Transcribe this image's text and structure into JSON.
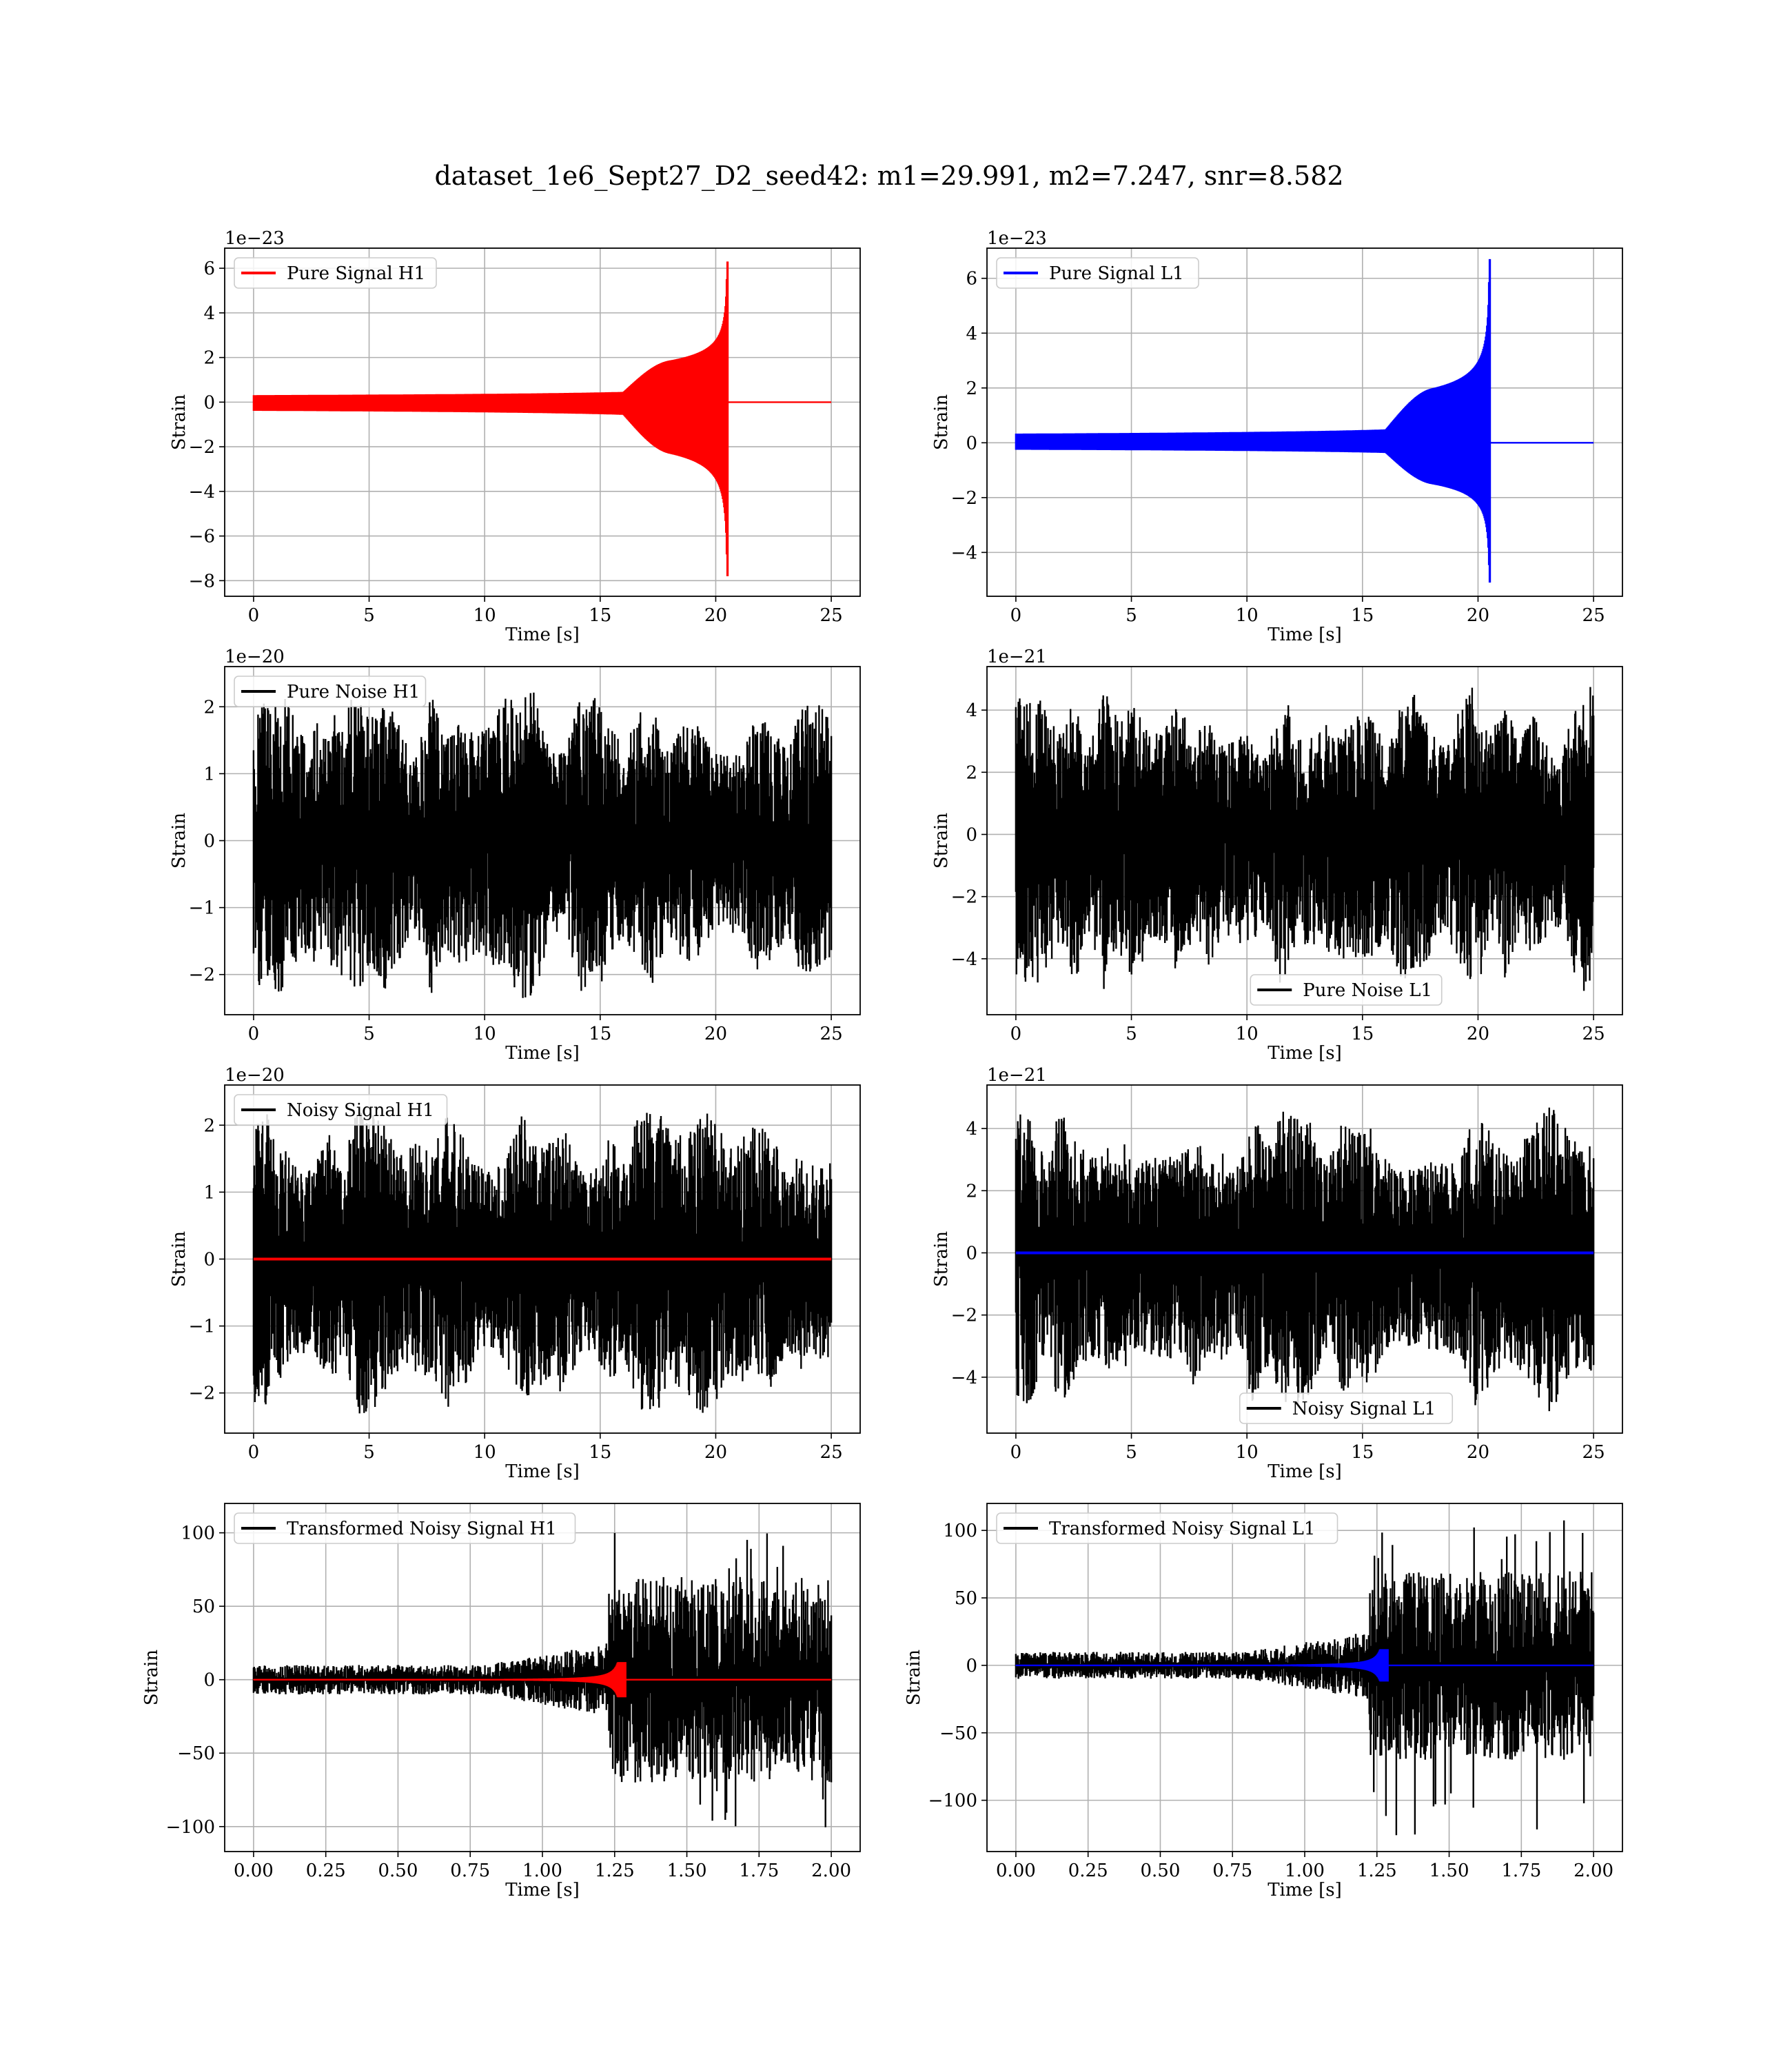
{
  "figure_title": "dataset_1e6_Sept27_D2_seed42: m1=29.991, m2=7.247, snr=8.582",
  "chart_data": [
    {
      "id": "p1",
      "type": "line",
      "ylabel": "Strain",
      "xlabel": "Time [s]",
      "offset_text": "1e−23",
      "xlim": [
        -1.25,
        26.25
      ],
      "ylim": [
        -8.7,
        6.9
      ],
      "xticks": [
        0,
        5,
        10,
        15,
        20,
        25
      ],
      "yticks": [
        -8,
        -6,
        -4,
        -2,
        0,
        2,
        4,
        6
      ],
      "xtick_labels": [
        "0",
        "5",
        "10",
        "15",
        "20",
        "25"
      ],
      "ytick_labels": [
        "−8",
        "−6",
        "−4",
        "−2",
        "0",
        "2",
        "4",
        "6"
      ],
      "legend": {
        "loc": "upper-left",
        "entries": [
          {
            "label": "Pure Signal H1",
            "color": "#ff0000"
          }
        ]
      },
      "series": [
        {
          "name": "Pure Signal H1",
          "color": "#ff0000",
          "kind": "chirp",
          "x_range": [
            0,
            25
          ],
          "merger_time": 20.5,
          "envelope_peak": [
            6.3,
            -7.8
          ]
        }
      ],
      "grid": true
    },
    {
      "id": "p2",
      "type": "line",
      "ylabel": "Strain",
      "xlabel": "Time [s]",
      "offset_text": "1e−23",
      "xlim": [
        -1.25,
        26.25
      ],
      "ylim": [
        -5.6,
        7.1
      ],
      "xticks": [
        0,
        5,
        10,
        15,
        20,
        25
      ],
      "yticks": [
        -4,
        -2,
        0,
        2,
        4,
        6
      ],
      "xtick_labels": [
        "0",
        "5",
        "10",
        "15",
        "20",
        "25"
      ],
      "ytick_labels": [
        "−4",
        "−2",
        "0",
        "2",
        "4",
        "6"
      ],
      "legend": {
        "loc": "upper-left",
        "entries": [
          {
            "label": "Pure Signal L1",
            "color": "#0000ff"
          }
        ]
      },
      "series": [
        {
          "name": "Pure Signal L1",
          "color": "#0000ff",
          "kind": "chirp",
          "x_range": [
            0,
            25
          ],
          "merger_time": 20.5,
          "envelope_peak": [
            6.7,
            -5.1
          ]
        }
      ],
      "grid": true
    },
    {
      "id": "p3",
      "type": "line",
      "ylabel": "Strain",
      "xlabel": "Time [s]",
      "offset_text": "1e−20",
      "xlim": [
        -1.25,
        26.25
      ],
      "ylim": [
        -2.6,
        2.6
      ],
      "xticks": [
        0,
        5,
        10,
        15,
        20,
        25
      ],
      "yticks": [
        -2,
        -1,
        0,
        1,
        2
      ],
      "xtick_labels": [
        "0",
        "5",
        "10",
        "15",
        "20",
        "25"
      ],
      "ytick_labels": [
        "−2",
        "−1",
        "0",
        "1",
        "2"
      ],
      "legend": {
        "loc": "upper-left",
        "entries": [
          {
            "label": "Pure Noise H1",
            "color": "#000000"
          }
        ]
      },
      "series": [
        {
          "name": "Pure Noise H1",
          "color": "#000000",
          "kind": "noise",
          "x_range": [
            0,
            25
          ],
          "envelope_max": 2.3,
          "envelope_min": -2.4
        }
      ],
      "grid": true
    },
    {
      "id": "p4",
      "type": "line",
      "ylabel": "Strain",
      "xlabel": "Time [s]",
      "offset_text": "1e−21",
      "xlim": [
        -1.25,
        26.25
      ],
      "ylim": [
        -5.8,
        5.4
      ],
      "xticks": [
        0,
        5,
        10,
        15,
        20,
        25
      ],
      "yticks": [
        -4,
        -2,
        0,
        2,
        4
      ],
      "xtick_labels": [
        "0",
        "5",
        "10",
        "15",
        "20",
        "25"
      ],
      "ytick_labels": [
        "−4",
        "−2",
        "0",
        "2",
        "4"
      ],
      "legend": {
        "loc": "lower-center",
        "entries": [
          {
            "label": "Pure Noise L1",
            "color": "#000000"
          }
        ]
      },
      "series": [
        {
          "name": "Pure Noise L1",
          "color": "#000000",
          "kind": "noise",
          "x_range": [
            0,
            25
          ],
          "envelope_max": 4.9,
          "envelope_min": -5.3
        }
      ],
      "grid": true
    },
    {
      "id": "p5",
      "type": "line",
      "ylabel": "Strain",
      "xlabel": "Time [s]",
      "offset_text": "1e−20",
      "xlim": [
        -1.25,
        26.25
      ],
      "ylim": [
        -2.6,
        2.6
      ],
      "xticks": [
        0,
        5,
        10,
        15,
        20,
        25
      ],
      "yticks": [
        -2,
        -1,
        0,
        1,
        2
      ],
      "xtick_labels": [
        "0",
        "5",
        "10",
        "15",
        "20",
        "25"
      ],
      "ytick_labels": [
        "−2",
        "−1",
        "0",
        "1",
        "2"
      ],
      "legend": {
        "loc": "upper-left",
        "entries": [
          {
            "label": "Noisy Signal H1",
            "color": "#000000"
          }
        ]
      },
      "series": [
        {
          "name": "Noisy Signal H1",
          "color": "#000000",
          "kind": "noise",
          "x_range": [
            0,
            25
          ],
          "envelope_max": 2.3,
          "envelope_min": -2.4
        },
        {
          "color": "#ff0000",
          "kind": "flat",
          "x_range": [
            0,
            25
          ],
          "value": 0
        }
      ],
      "grid": true
    },
    {
      "id": "p6",
      "type": "line",
      "ylabel": "Strain",
      "xlabel": "Time [s]",
      "offset_text": "1e−21",
      "xlim": [
        -1.25,
        26.25
      ],
      "ylim": [
        -5.8,
        5.4
      ],
      "xticks": [
        0,
        5,
        10,
        15,
        20,
        25
      ],
      "yticks": [
        -4,
        -2,
        0,
        2,
        4
      ],
      "xtick_labels": [
        "0",
        "5",
        "10",
        "15",
        "20",
        "25"
      ],
      "ytick_labels": [
        "−4",
        "−2",
        "0",
        "2",
        "4"
      ],
      "legend": {
        "loc": "lower-center",
        "entries": [
          {
            "label": "Noisy Signal L1",
            "color": "#000000"
          }
        ]
      },
      "series": [
        {
          "name": "Noisy Signal L1",
          "color": "#000000",
          "kind": "noise",
          "x_range": [
            0,
            25
          ],
          "envelope_max": 4.9,
          "envelope_min": -5.3
        },
        {
          "color": "#0000ff",
          "kind": "flat",
          "x_range": [
            0,
            25
          ],
          "value": 0
        }
      ],
      "grid": true
    },
    {
      "id": "p7",
      "type": "line",
      "ylabel": "Strain",
      "xlabel": "Time [s]",
      "offset_text": "",
      "xlim": [
        -0.1,
        2.1
      ],
      "ylim": [
        -117,
        120
      ],
      "xticks": [
        0,
        0.25,
        0.5,
        0.75,
        1.0,
        1.25,
        1.5,
        1.75,
        2.0
      ],
      "yticks": [
        -100,
        -50,
        0,
        50,
        100
      ],
      "xtick_labels": [
        "0.00",
        "0.25",
        "0.50",
        "0.75",
        "1.00",
        "1.25",
        "1.50",
        "1.75",
        "2.00"
      ],
      "ytick_labels": [
        "−100",
        "−50",
        "0",
        "50",
        "100"
      ],
      "legend": {
        "loc": "upper-left",
        "entries": [
          {
            "label": "Transformed Noisy Signal H1",
            "color": "#000000"
          }
        ]
      },
      "series": [
        {
          "name": "Transformed Noisy Signal H1",
          "color": "#000000",
          "kind": "whitened",
          "x_range": [
            0,
            2.0
          ],
          "pre_amp": 10,
          "post_amp": 70,
          "jump_at": 1.23,
          "spike_max": 108,
          "spike_min": -105
        },
        {
          "color": "#ff0000",
          "kind": "whitened-chirp",
          "x_range": [
            0,
            2.0
          ],
          "merger_time": 1.28,
          "peak": 12
        }
      ],
      "grid": true
    },
    {
      "id": "p8",
      "type": "line",
      "ylabel": "Strain",
      "xlabel": "Time [s]",
      "offset_text": "",
      "xlim": [
        -0.1,
        2.1
      ],
      "ylim": [
        -138,
        120
      ],
      "xticks": [
        0,
        0.25,
        0.5,
        0.75,
        1.0,
        1.25,
        1.5,
        1.75,
        2.0
      ],
      "yticks": [
        -100,
        -50,
        0,
        50,
        100
      ],
      "xtick_labels": [
        "0.00",
        "0.25",
        "0.50",
        "0.75",
        "1.00",
        "1.25",
        "1.50",
        "1.75",
        "2.00"
      ],
      "ytick_labels": [
        "−100",
        "−50",
        "0",
        "50",
        "100"
      ],
      "legend": {
        "loc": "upper-left",
        "entries": [
          {
            "label": "Transformed Noisy Signal L1",
            "color": "#000000"
          }
        ]
      },
      "series": [
        {
          "name": "Transformed Noisy Signal L1",
          "color": "#000000",
          "kind": "whitened",
          "x_range": [
            0,
            2.0
          ],
          "pre_amp": 10,
          "post_amp": 70,
          "jump_at": 1.22,
          "spike_max": 110,
          "spike_min": -128
        },
        {
          "color": "#0000ff",
          "kind": "whitened-chirp",
          "x_range": [
            0,
            2.0
          ],
          "merger_time": 1.28,
          "peak": 12
        }
      ],
      "grid": true
    }
  ]
}
